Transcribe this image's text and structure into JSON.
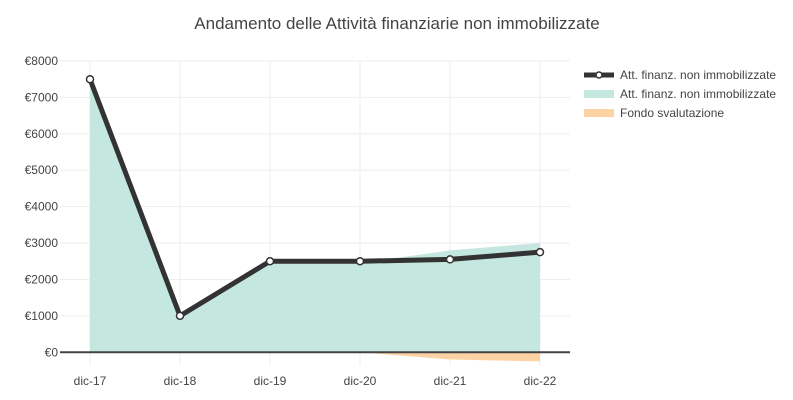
{
  "chart_data": {
    "type": "area",
    "title": "Andamento delle Attività finanziarie non immobilizzate",
    "categories": [
      "dic-17",
      "dic-18",
      "dic-19",
      "dic-20",
      "dic-21",
      "dic-22"
    ],
    "yticks": [
      "€0",
      "€1000",
      "€2000",
      "€3000",
      "€4000",
      "€5000",
      "€6000",
      "€7000",
      "€8000"
    ],
    "ylim": [
      -350,
      8000
    ],
    "grid": true,
    "legend_position": "top-right",
    "series": [
      {
        "name": "Att. finanz. non immobilizzate",
        "type": "line",
        "color": "#333333",
        "values": [
          7500,
          1000,
          2500,
          2500,
          2550,
          2750
        ]
      },
      {
        "name": "Att. finanz. non immobilizzate",
        "type": "area",
        "color": "#c4e8e0",
        "values": [
          7500,
          1000,
          2450,
          2450,
          2800,
          3000
        ]
      },
      {
        "name": "Fondo svalutazione",
        "type": "area",
        "color": "#fdd3a6",
        "values": [
          0,
          0,
          0,
          0,
          -200,
          -250
        ]
      }
    ]
  }
}
